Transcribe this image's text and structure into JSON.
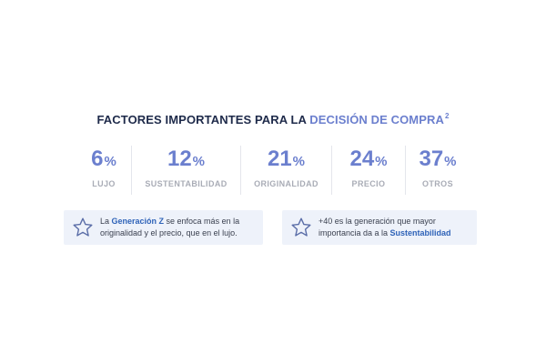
{
  "title": {
    "main": "FACTORES IMPORTANTES PARA LA",
    "accent": "DECISIÓN DE COMPRA",
    "sup": "2"
  },
  "stats": [
    {
      "value": "6",
      "unit": "%",
      "label": "LUJO"
    },
    {
      "value": "12",
      "unit": "%",
      "label": "SUSTENTABILIDAD"
    },
    {
      "value": "21",
      "unit": "%",
      "label": "ORIGINALIDAD"
    },
    {
      "value": "24",
      "unit": "%",
      "label": "PRECIO"
    },
    {
      "value": "37",
      "unit": "%",
      "label": "OTROS"
    }
  ],
  "cards": [
    {
      "icon": "star-icon",
      "pre": "La ",
      "highlight": "Generación Z",
      "post": " se enfoca más en la originalidad y el precio, que en el lujo."
    },
    {
      "icon": "star-icon",
      "pre": "+40 es la generación que mayor importancia da a la ",
      "highlight": "Sustentabilidad",
      "post": ""
    }
  ],
  "colors": {
    "accent": "#6b7fce",
    "title": "#1e2a4a",
    "label": "#a9acb6",
    "card_bg": "#eef2fa",
    "highlight": "#2f63b8"
  }
}
